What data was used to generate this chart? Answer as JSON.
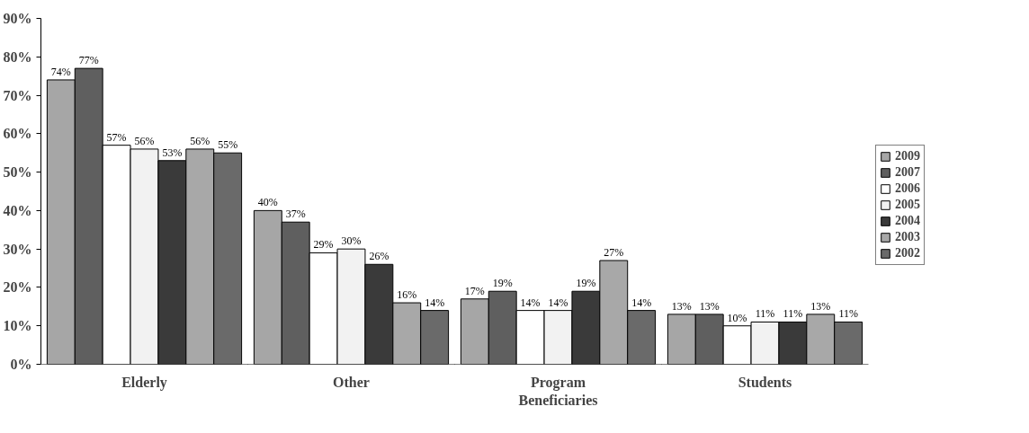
{
  "chart_data": {
    "type": "bar",
    "categories": [
      "Elderly",
      "Other",
      "Program Beneficiaries",
      "Students"
    ],
    "series": [
      {
        "name": "2009",
        "color": "#a6a6a6",
        "values": [
          74,
          40,
          17,
          13
        ],
        "value_labels": [
          "74%",
          "40%",
          "17%",
          "13%"
        ]
      },
      {
        "name": "2007",
        "color": "#5f5f5f",
        "values": [
          77,
          37,
          19,
          13
        ],
        "value_labels": [
          "77%",
          "37%",
          "19%",
          "13%"
        ]
      },
      {
        "name": "2006",
        "color": "#ffffff",
        "values": [
          57,
          29,
          14,
          10
        ],
        "value_labels": [
          "57%",
          "29%",
          "14%",
          "10%"
        ]
      },
      {
        "name": "2005",
        "color": "#f2f2f2",
        "values": [
          56,
          30,
          14,
          11
        ],
        "value_labels": [
          "56%",
          "30%",
          "14%",
          "11%"
        ]
      },
      {
        "name": "2004",
        "color": "#3a3a3a",
        "values": [
          53,
          26,
          19,
          11
        ],
        "value_labels": [
          "53%",
          "26%",
          "19%",
          "11%"
        ]
      },
      {
        "name": "2003",
        "color": "#a8a8a8",
        "values": [
          56,
          16,
          27,
          13
        ],
        "value_labels": [
          "56%",
          "16%",
          "27%",
          "13%"
        ]
      },
      {
        "name": "2002",
        "color": "#6a6a6a",
        "values": [
          55,
          14,
          14,
          11
        ],
        "value_labels": [
          "55%",
          "14%",
          "14%",
          "11%"
        ]
      }
    ],
    "ylim": [
      0,
      90
    ],
    "yticks": [
      {
        "value": 0,
        "label": "0%"
      },
      {
        "value": 10,
        "label": "10%"
      },
      {
        "value": 20,
        "label": "20%"
      },
      {
        "value": 30,
        "label": "30%"
      },
      {
        "value": 40,
        "label": "40%"
      },
      {
        "value": 50,
        "label": "50%"
      },
      {
        "value": 60,
        "label": "60%"
      },
      {
        "value": 70,
        "label": "70%"
      },
      {
        "value": 80,
        "label": "80%"
      },
      {
        "value": 90,
        "label": "90%"
      }
    ],
    "grid": false,
    "legend": "right"
  }
}
